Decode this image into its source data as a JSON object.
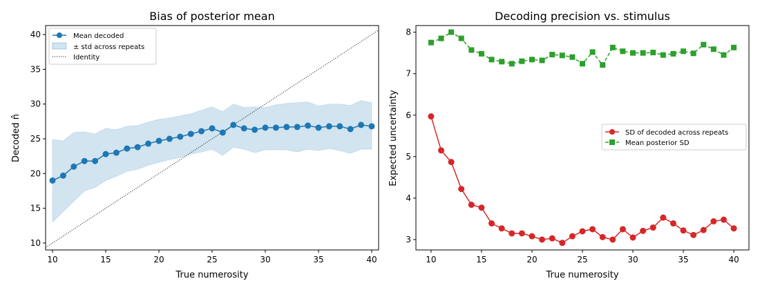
{
  "chart_data": [
    {
      "type": "line",
      "title": "Bias of posterior mean",
      "xlabel": "True numerosity",
      "ylabel": "Decoded n̂",
      "xlim": [
        9.35,
        40.65
      ],
      "ylim": [
        9.0,
        41.3
      ],
      "xticks": [
        10,
        15,
        20,
        25,
        30,
        35,
        40
      ],
      "yticks": [
        10,
        15,
        20,
        25,
        30,
        35,
        40
      ],
      "legend_position": "upper-left",
      "grid": false,
      "x": [
        10,
        11,
        12,
        13,
        14,
        15,
        16,
        17,
        18,
        19,
        20,
        21,
        22,
        23,
        24,
        25,
        26,
        27,
        28,
        29,
        30,
        31,
        32,
        33,
        34,
        35,
        36,
        37,
        38,
        39,
        40
      ],
      "series": [
        {
          "name": "Mean decoded",
          "color": "#1f77b4",
          "marker": "circle",
          "values": [
            19.0,
            19.7,
            21.0,
            21.8,
            21.8,
            22.8,
            23.0,
            23.6,
            23.8,
            24.3,
            24.7,
            25.0,
            25.3,
            25.7,
            26.1,
            26.5,
            25.9,
            27.0,
            26.5,
            26.3,
            26.6,
            26.6,
            26.7,
            26.7,
            26.9,
            26.6,
            26.8,
            26.8,
            26.4,
            27.0,
            26.8
          ]
        },
        {
          "name": "± std across repeats",
          "color": "#1f77b4",
          "kind": "band",
          "upper": [
            24.9,
            24.7,
            25.9,
            26.0,
            25.7,
            26.5,
            26.3,
            26.8,
            26.9,
            27.4,
            27.8,
            28.0,
            28.3,
            28.6,
            29.1,
            29.6,
            28.9,
            30.0,
            29.5,
            29.6,
            29.5,
            29.9,
            30.1,
            30.2,
            30.3,
            29.7,
            30.0,
            30.0,
            29.8,
            30.5,
            30.2
          ],
          "lower": [
            13.0,
            14.5,
            16.0,
            17.5,
            18.0,
            19.0,
            19.6,
            20.3,
            20.6,
            21.2,
            21.6,
            22.0,
            22.3,
            22.8,
            23.1,
            23.5,
            22.6,
            23.8,
            23.5,
            23.0,
            23.4,
            23.4,
            23.4,
            23.1,
            23.5,
            23.3,
            23.6,
            23.3,
            22.9,
            23.5,
            23.5
          ]
        },
        {
          "name": "Identity",
          "color": "#000000",
          "style": "dotted",
          "kind": "identity"
        }
      ]
    },
    {
      "type": "line",
      "title": "Decoding precision vs. stimulus",
      "xlabel": "True numerosity",
      "ylabel": "Expected uncertainty",
      "xlim": [
        8.5,
        41.5
      ],
      "ylim": [
        2.75,
        8.16
      ],
      "xticks": [
        10,
        15,
        20,
        25,
        30,
        35,
        40
      ],
      "yticks": [
        3,
        4,
        5,
        6,
        7,
        8
      ],
      "legend_position": "center-right",
      "grid": false,
      "x": [
        10,
        11,
        12,
        13,
        14,
        15,
        16,
        17,
        18,
        19,
        20,
        21,
        22,
        23,
        24,
        25,
        26,
        27,
        28,
        29,
        30,
        31,
        32,
        33,
        34,
        35,
        36,
        37,
        38,
        39,
        40
      ],
      "series": [
        {
          "name": "SD of decoded across repeats",
          "color": "#d62728",
          "marker": "circle",
          "style": "solid",
          "values": [
            5.97,
            5.15,
            4.87,
            4.22,
            3.84,
            3.77,
            3.39,
            3.27,
            3.15,
            3.15,
            3.08,
            3.0,
            3.03,
            2.92,
            3.08,
            3.2,
            3.25,
            3.06,
            3.0,
            3.25,
            3.05,
            3.21,
            3.29,
            3.53,
            3.39,
            3.22,
            3.11,
            3.23,
            3.44,
            3.48,
            3.27
          ]
        },
        {
          "name": "Mean posterior SD",
          "color": "#2ca02c",
          "marker": "square",
          "style": "dashed",
          "values": [
            7.75,
            7.85,
            8.0,
            7.85,
            7.57,
            7.48,
            7.34,
            7.29,
            7.24,
            7.3,
            7.34,
            7.32,
            7.46,
            7.44,
            7.4,
            7.24,
            7.52,
            7.21,
            7.63,
            7.54,
            7.5,
            7.5,
            7.51,
            7.45,
            7.48,
            7.54,
            7.49,
            7.7,
            7.59,
            7.45,
            7.63
          ]
        }
      ]
    }
  ]
}
